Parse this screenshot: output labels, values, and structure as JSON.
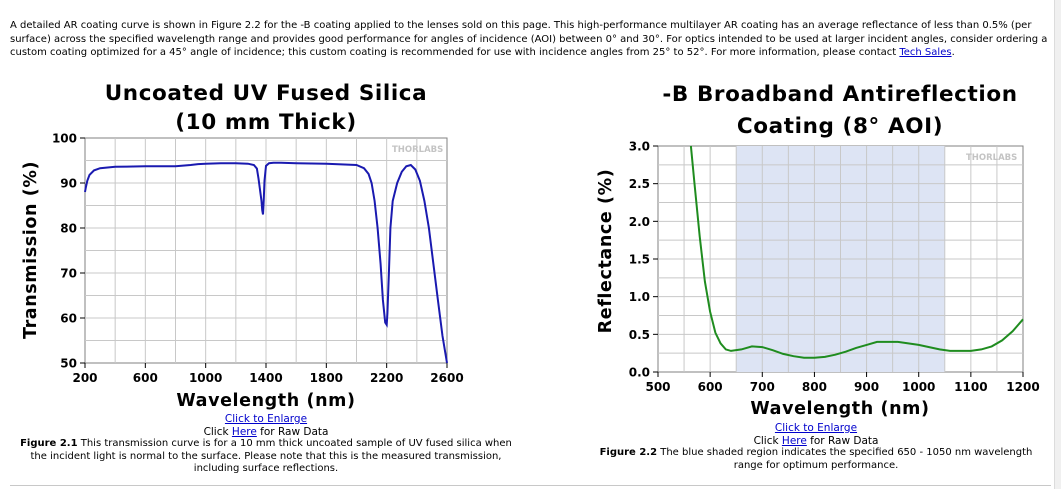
{
  "intro": {
    "text": "A detailed AR coating curve is shown in Figure 2.2 for the -B coating applied to the lenses sold on this page. This high-performance multilayer AR coating has an average reflectance of less than 0.5% (per surface) across the specified wavelength range and provides good performance for angles of incidence (AOI) between 0° and 30°. For optics intended to be used at larger incident angles, consider ordering a custom coating optimized for a 45° angle of incidence; this custom coating is recommended for use with incidence angles from 25° to 52°. For more information, please contact ",
    "link": "Tech Sales",
    "end": "."
  },
  "colors": {
    "transmission_line": "#1a1ab0",
    "reflectance_line": "#1f8c1f",
    "band_shade": "#dde4f4",
    "grid": "#c8c8c8"
  },
  "figures": [
    {
      "logo": "THORLABS",
      "enlarge_link": "Click to Enlarge",
      "raw_data": {
        "pre": "Click ",
        "link": "Here",
        "post": " for Raw Data"
      },
      "caption_label": "Figure 2.1",
      "caption_text": "  This transmission curve is for a 10 mm thick uncoated sample of UV fused silica when the incident light is normal to the surface. Please note that this is the measured transmission, including surface reflections."
    },
    {
      "logo": "THORLABS",
      "enlarge_link": "Click to Enlarge",
      "raw_data": {
        "pre": "Click ",
        "link": "Here",
        "post": " for Raw Data"
      },
      "caption_label": "Figure 2.2",
      "caption_text": "  The blue shaded region indicates the specified 650 - 1050 nm wavelength range for optimum performance."
    }
  ],
  "chart_data": [
    {
      "type": "line",
      "title": [
        "Uncoated UV Fused Silica",
        "(10 mm Thick)"
      ],
      "xlabel": "Wavelength (nm)",
      "ylabel": "Transmission (%)",
      "xlim": [
        200,
        2600
      ],
      "ylim": [
        50,
        100
      ],
      "xticks": [
        200,
        600,
        1000,
        1400,
        1800,
        2200,
        2600
      ],
      "yticks": [
        50,
        60,
        70,
        80,
        90,
        100
      ],
      "grid": true,
      "series": [
        {
          "x": [
            200,
            205,
            215,
            230,
            260,
            300,
            400,
            600,
            800,
            900,
            950,
            1000,
            1100,
            1200,
            1280,
            1320,
            1340,
            1350,
            1360,
            1370,
            1375,
            1380,
            1385,
            1390,
            1400,
            1420,
            1450,
            1500,
            1600,
            1800,
            2000,
            2050,
            2080,
            2100,
            2120,
            2140,
            2160,
            2175,
            2190,
            2200,
            2205,
            2215,
            2225,
            2240,
            2270,
            2300,
            2330,
            2360,
            2390,
            2420,
            2450,
            2480,
            2510,
            2540,
            2570,
            2590,
            2600
          ],
          "y": [
            88.0,
            89.0,
            90.5,
            91.8,
            92.8,
            93.3,
            93.6,
            93.7,
            93.7,
            94.0,
            94.2,
            94.3,
            94.4,
            94.4,
            94.3,
            94.0,
            93.2,
            91.0,
            88.5,
            86.0,
            84.0,
            83.0,
            86.0,
            90.5,
            93.8,
            94.4,
            94.5,
            94.5,
            94.4,
            94.3,
            94.0,
            93.3,
            92.0,
            90.0,
            86.0,
            80.0,
            72.0,
            64.0,
            59.0,
            58.5,
            61.0,
            70.0,
            80.0,
            86.0,
            90.0,
            92.5,
            93.7,
            94.0,
            93.0,
            90.5,
            86.0,
            80.0,
            72.0,
            64.0,
            56.0,
            52.0,
            50.0
          ]
        }
      ]
    },
    {
      "type": "line",
      "title": [
        "-B Broadband Antireflection",
        "Coating (8° AOI)"
      ],
      "xlabel": "Wavelength (nm)",
      "ylabel": "Reflectance (%)",
      "xlim": [
        500,
        1200
      ],
      "ylim": [
        0.0,
        3.0
      ],
      "xticks": [
        500,
        600,
        700,
        800,
        900,
        1000,
        1100,
        1200
      ],
      "yticks": [
        "0.0",
        "0.5",
        "1.0",
        "1.5",
        "2.0",
        "2.5",
        "3.0"
      ],
      "grid": true,
      "shaded_band": [
        650,
        1050
      ],
      "series": [
        {
          "x": [
            563,
            570,
            580,
            590,
            600,
            610,
            620,
            630,
            640,
            660,
            680,
            700,
            720,
            740,
            760,
            780,
            800,
            820,
            840,
            860,
            880,
            900,
            920,
            940,
            960,
            980,
            1000,
            1020,
            1040,
            1060,
            1080,
            1100,
            1120,
            1140,
            1160,
            1180,
            1200
          ],
          "y": [
            3.0,
            2.5,
            1.8,
            1.2,
            0.8,
            0.52,
            0.38,
            0.3,
            0.28,
            0.3,
            0.34,
            0.33,
            0.29,
            0.24,
            0.21,
            0.19,
            0.19,
            0.2,
            0.23,
            0.27,
            0.32,
            0.36,
            0.4,
            0.4,
            0.4,
            0.38,
            0.36,
            0.33,
            0.3,
            0.28,
            0.28,
            0.28,
            0.3,
            0.34,
            0.42,
            0.54,
            0.7
          ]
        }
      ]
    }
  ]
}
